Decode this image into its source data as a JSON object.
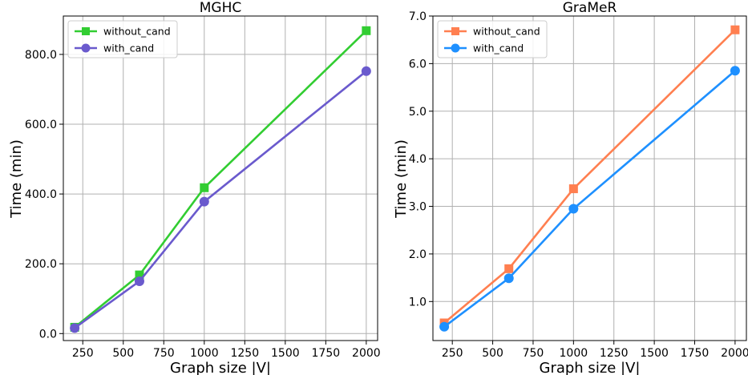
{
  "chart_data": [
    {
      "type": "line",
      "title": "MGHC",
      "xlabel": "Graph size |V|",
      "ylabel": "Time (min)",
      "xlim": [
        130,
        2070
      ],
      "ylim": [
        -20,
        910
      ],
      "xticks": [
        250,
        500,
        750,
        1000,
        1250,
        1500,
        1750,
        2000
      ],
      "xtick_labels": [
        "250",
        "500",
        "750",
        "1000",
        "1250",
        "1500",
        "1750",
        "2000"
      ],
      "yticks": [
        0,
        200,
        400,
        600,
        800
      ],
      "ytick_labels": [
        "0.0",
        "200.0",
        "400.0",
        "600.0",
        "800.0"
      ],
      "grid": true,
      "legend_position": "top-left",
      "series": [
        {
          "name": "without_cand",
          "color": "#32cd32",
          "marker": "square",
          "x": [
            200,
            600,
            1000,
            2000
          ],
          "values": [
            18,
            168,
            418,
            868
          ]
        },
        {
          "name": "with_cand",
          "color": "#6a5acd",
          "marker": "circle",
          "x": [
            200,
            600,
            1000,
            2000
          ],
          "values": [
            16,
            150,
            378,
            752
          ]
        }
      ]
    },
    {
      "type": "line",
      "title": "GraMeR",
      "xlabel": "Graph size |V|",
      "ylabel": "Time (min)",
      "xlim": [
        130,
        2070
      ],
      "ylim": [
        0.18,
        7.0
      ],
      "xticks": [
        250,
        500,
        750,
        1000,
        1250,
        1500,
        1750,
        2000
      ],
      "xtick_labels": [
        "250",
        "500",
        "750",
        "1000",
        "1250",
        "1500",
        "1750",
        "2000"
      ],
      "yticks": [
        1,
        2,
        3,
        4,
        5,
        6,
        7
      ],
      "ytick_labels": [
        "1.0",
        "2.0",
        "3.0",
        "4.0",
        "5.0",
        "6.0",
        "7.0"
      ],
      "grid": true,
      "legend_position": "top-left",
      "series": [
        {
          "name": "without_cand",
          "color": "#ff7f50",
          "marker": "square",
          "x": [
            200,
            600,
            1000,
            2000
          ],
          "values": [
            0.55,
            1.69,
            3.37,
            6.71
          ]
        },
        {
          "name": "with_cand",
          "color": "#1e90ff",
          "marker": "circle",
          "x": [
            200,
            600,
            1000,
            2000
          ],
          "values": [
            0.47,
            1.49,
            2.95,
            5.85
          ]
        }
      ]
    }
  ]
}
